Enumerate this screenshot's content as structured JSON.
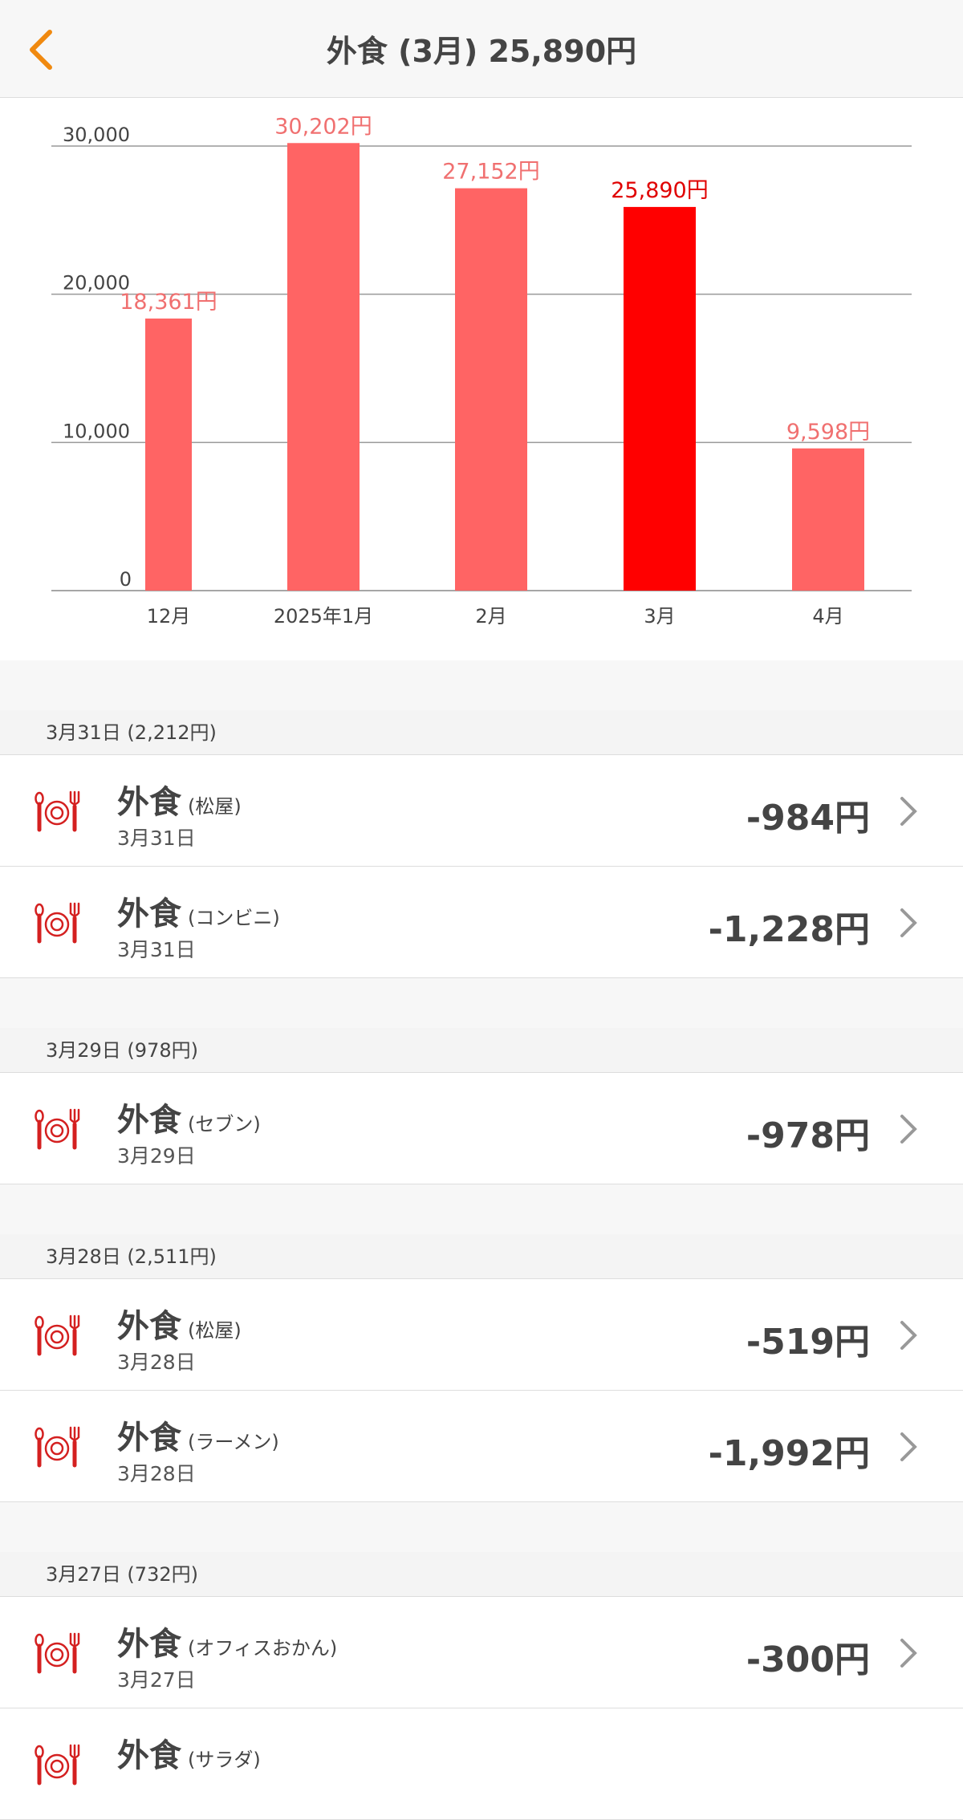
{
  "header": {
    "title": "外食 (3月) 25,890円",
    "back_icon": "chevron-left-icon",
    "accent": "#f0890f"
  },
  "chart_data": {
    "type": "bar",
    "categories": [
      "12月",
      "2025年1月",
      "2月",
      "3月",
      "4月"
    ],
    "values": [
      18361,
      30202,
      27152,
      25890,
      9598
    ],
    "data_labels": [
      "18,361円",
      "30,202円",
      "27,152円",
      "25,890円",
      "9,598円"
    ],
    "y_ticks": [
      "0",
      "10,000",
      "20,000",
      "30,000"
    ],
    "ylim": [
      0,
      30000
    ],
    "grid": true,
    "selected": "3月",
    "colors": {
      "bar": "#ff6464",
      "selected": "#ff0000",
      "label": "#f07070",
      "selected_label": "#e00000"
    }
  },
  "sections": [
    {
      "header": "3月31日 (2,212円)",
      "items": [
        {
          "name": "外食",
          "memo": "(松屋)",
          "date": "3月31日",
          "amount": "-984円"
        },
        {
          "name": "外食",
          "memo": "(コンビニ)",
          "date": "3月31日",
          "amount": "-1,228円"
        }
      ]
    },
    {
      "header": "3月29日 (978円)",
      "items": [
        {
          "name": "外食",
          "memo": "(セブン)",
          "date": "3月29日",
          "amount": "-978円"
        }
      ]
    },
    {
      "header": "3月28日 (2,511円)",
      "items": [
        {
          "name": "外食",
          "memo": "(松屋)",
          "date": "3月28日",
          "amount": "-519円"
        },
        {
          "name": "外食",
          "memo": "(ラーメン)",
          "date": "3月28日",
          "amount": "-1,992円"
        }
      ]
    },
    {
      "header": "3月27日 (732円)",
      "items": [
        {
          "name": "外食",
          "memo": "(オフィスおかん)",
          "date": "3月27日",
          "amount": "-300円"
        },
        {
          "name": "外食",
          "memo": "(サラダ)",
          "date": "",
          "amount": ""
        }
      ]
    }
  ]
}
